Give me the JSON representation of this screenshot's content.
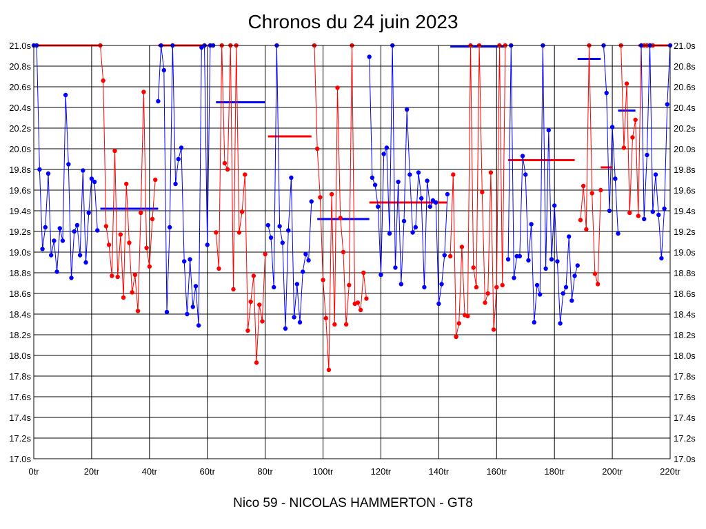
{
  "chart_data": {
    "type": "line",
    "title": "Chronos du 24 juin 2023",
    "footer": "Nico 59 - NICOLAS HAMMERTON - GT8",
    "xlabel": "",
    "ylabel": "",
    "xlim": [
      0,
      220
    ],
    "ylim": [
      17.0,
      21.0
    ],
    "x_ticks": [
      0,
      20,
      40,
      60,
      80,
      100,
      120,
      140,
      160,
      180,
      200,
      220
    ],
    "x_tick_labels": [
      "0tr",
      "20tr",
      "40tr",
      "60tr",
      "80tr",
      "100tr",
      "120tr",
      "140tr",
      "160tr",
      "180tr",
      "200tr",
      "220tr"
    ],
    "y_ticks": [
      17.0,
      17.2,
      17.4,
      17.6,
      17.8,
      18.0,
      18.2,
      18.4,
      18.6,
      18.8,
      19.0,
      19.2,
      19.4,
      19.6,
      19.8,
      20.0,
      20.2,
      20.4,
      20.6,
      20.8,
      21.0
    ],
    "y_tick_labels": [
      "17.0s",
      "17.2s",
      "17.4s",
      "17.6s",
      "17.8s",
      "18.0s",
      "18.2s",
      "18.4s",
      "18.6s",
      "18.8s",
      "19.0s",
      "19.2s",
      "19.4s",
      "19.6s",
      "19.8s",
      "20.0s",
      "20.2s",
      "20.4s",
      "20.6s",
      "20.8s",
      "21.0s"
    ],
    "grid": true,
    "colors": {
      "blue": "#0000ff",
      "red": "#ff0000"
    },
    "series": [
      {
        "name": "s1",
        "color": "blue",
        "x": [
          0,
          1,
          2,
          3,
          4,
          5,
          6,
          7,
          8,
          9,
          10,
          11,
          12,
          13,
          14,
          15,
          16,
          17,
          18,
          19,
          20,
          21,
          22
        ],
        "y": [
          21.0,
          21.0,
          19.8,
          19.03,
          19.24,
          19.76,
          18.97,
          19.11,
          18.81,
          19.23,
          19.11,
          20.52,
          19.85,
          18.75,
          19.2,
          19.26,
          18.97,
          19.79,
          18.9,
          19.38,
          19.71,
          19.68,
          19.21
        ]
      },
      {
        "name": "s2",
        "color": "red",
        "x": [
          23,
          24,
          25,
          26,
          27,
          28,
          29,
          30,
          31,
          32,
          33,
          34,
          35,
          36,
          37,
          38,
          39,
          40,
          41,
          42
        ],
        "y": [
          21.0,
          20.66,
          19.25,
          19.07,
          18.77,
          19.98,
          18.76,
          19.17,
          18.56,
          19.66,
          19.09,
          18.61,
          18.78,
          18.43,
          19.38,
          20.55,
          19.04,
          18.86,
          19.32,
          19.7
        ]
      },
      {
        "name": "s3",
        "color": "blue",
        "x": [
          43,
          44,
          45,
          46,
          47,
          48,
          49,
          50,
          51,
          52,
          53,
          54,
          55,
          56,
          57,
          58,
          59,
          60,
          61,
          62
        ],
        "y": [
          20.46,
          21.0,
          20.76,
          18.42,
          19.24,
          21.0,
          19.66,
          19.9,
          20.01,
          18.91,
          18.4,
          18.93,
          18.47,
          18.67,
          18.29,
          20.98,
          21.0,
          19.07,
          21.0,
          21.0
        ]
      },
      {
        "name": "s4",
        "color": "red",
        "x": [
          63,
          64,
          65,
          66,
          67,
          68,
          69,
          70,
          71,
          72,
          73,
          74,
          75,
          76,
          77,
          78,
          79,
          80
        ],
        "y": [
          19.19,
          18.84,
          21.0,
          19.86,
          19.8,
          21.0,
          18.64,
          21.0,
          19.19,
          19.39,
          19.75,
          18.24,
          18.52,
          18.77,
          17.93,
          18.49,
          18.33,
          18.98
        ]
      },
      {
        "name": "s5",
        "color": "blue",
        "x": [
          81,
          82,
          83,
          84,
          85,
          86,
          87,
          88,
          89,
          90,
          91,
          92,
          93,
          94,
          95,
          96
        ],
        "y": [
          19.26,
          19.14,
          18.66,
          21.0,
          19.25,
          19.09,
          18.26,
          19.21,
          19.72,
          18.37,
          18.69,
          18.32,
          18.81,
          18.98,
          18.92,
          19.49
        ]
      },
      {
        "name": "s6",
        "color": "red",
        "x": [
          97,
          98,
          99,
          100,
          101,
          102,
          103,
          104,
          105,
          106,
          107,
          108,
          109,
          110,
          111,
          112,
          113,
          114,
          115
        ],
        "y": [
          21.0,
          20.0,
          19.53,
          18.73,
          18.36,
          17.86,
          19.56,
          18.3,
          20.59,
          19.33,
          19.0,
          18.3,
          18.68,
          21.0,
          18.5,
          18.51,
          18.44,
          18.8,
          18.55
        ]
      },
      {
        "name": "s7",
        "color": "blue",
        "x": [
          116,
          117,
          118,
          119,
          120,
          121,
          122,
          123,
          124,
          125,
          126,
          127,
          128,
          129,
          130,
          131,
          132,
          133,
          134,
          135,
          136,
          137,
          138,
          139,
          140,
          141,
          142,
          143
        ],
        "y": [
          20.89,
          19.72,
          19.65,
          19.44,
          18.78,
          19.95,
          20.01,
          19.18,
          21.0,
          18.85,
          19.68,
          18.69,
          19.3,
          20.38,
          19.75,
          19.19,
          19.24,
          19.77,
          19.52,
          18.66,
          19.69,
          19.44,
          19.5,
          19.48,
          18.5,
          18.69,
          18.97,
          19.56
        ]
      },
      {
        "name": "s8",
        "color": "red",
        "x": [
          144,
          145,
          146,
          147,
          148,
          149,
          150,
          151,
          152,
          153,
          154,
          155,
          156,
          157,
          158,
          159,
          160,
          161,
          162,
          163
        ],
        "y": [
          18.96,
          19.75,
          18.18,
          18.31,
          19.05,
          18.39,
          18.38,
          21.0,
          18.85,
          18.66,
          21.0,
          19.58,
          18.51,
          18.6,
          19.77,
          18.25,
          18.66,
          21.0,
          18.68,
          21.0
        ]
      },
      {
        "name": "s9",
        "color": "blue",
        "x": [
          164,
          165,
          166,
          167,
          168,
          169,
          170,
          171,
          172,
          173,
          174,
          175,
          176,
          177,
          178,
          179,
          180,
          181,
          182,
          183,
          184,
          185,
          186,
          187,
          188
        ],
        "y": [
          18.93,
          21.0,
          18.75,
          18.96,
          18.96,
          19.93,
          19.75,
          18.92,
          19.27,
          18.32,
          18.68,
          18.59,
          21.0,
          18.84,
          20.18,
          18.93,
          19.45,
          18.91,
          18.31,
          18.6,
          18.66,
          19.15,
          18.53,
          18.77,
          18.87
        ]
      },
      {
        "name": "s10",
        "color": "red",
        "x": [
          189,
          190,
          191,
          192,
          193,
          194,
          195,
          196
        ],
        "y": [
          19.31,
          19.64,
          19.22,
          21.0,
          19.57,
          18.79,
          18.69,
          19.6
        ]
      },
      {
        "name": "s11",
        "color": "blue",
        "x": [
          197,
          198,
          199,
          200,
          201
        ],
        "y": [
          21.0,
          20.54,
          19.4,
          20.21,
          19.71
        ]
      },
      {
        "name": "s12",
        "color": "blue",
        "x": [
          201,
          202
        ],
        "y": [
          19.71,
          19.18
        ]
      },
      {
        "name": "s13",
        "color": "red",
        "x": [
          203,
          204,
          205,
          206,
          207,
          208,
          209,
          210,
          211,
          212,
          213,
          214
        ],
        "y": [
          21.0,
          20.01,
          20.63,
          19.38,
          20.11,
          20.28,
          19.35,
          21.0,
          21.0,
          21.0,
          21.0,
          21.0
        ]
      },
      {
        "name": "s14",
        "color": "blue",
        "x": [
          210,
          211,
          212,
          213,
          214,
          215,
          216,
          217,
          218,
          219,
          220
        ],
        "y": [
          21.0,
          19.32,
          19.94,
          21.0,
          19.39,
          19.75,
          19.36,
          18.94,
          19.42,
          20.43,
          21.0
        ]
      }
    ],
    "reference_lines": [
      {
        "color": "red",
        "x_start": 0.5,
        "x_end": 23,
        "y": 21.0
      },
      {
        "color": "blue",
        "x_start": 23,
        "x_end": 43,
        "y": 19.42
      },
      {
        "color": "red",
        "x_start": 43,
        "x_end": 60,
        "y": 21.0
      },
      {
        "color": "blue",
        "x_start": 63,
        "x_end": 80,
        "y": 20.45
      },
      {
        "color": "red",
        "x_start": 81,
        "x_end": 96,
        "y": 20.12
      },
      {
        "color": "blue",
        "x_start": 98,
        "x_end": 116,
        "y": 19.32
      },
      {
        "color": "red",
        "x_start": 116,
        "x_end": 143,
        "y": 19.48
      },
      {
        "color": "blue",
        "x_start": 144,
        "x_end": 163,
        "y": 20.99
      },
      {
        "color": "red",
        "x_start": 164,
        "x_end": 187,
        "y": 19.89
      },
      {
        "color": "blue",
        "x_start": 188,
        "x_end": 196,
        "y": 20.87
      },
      {
        "color": "red",
        "x_start": 196,
        "x_end": 200,
        "y": 19.82
      },
      {
        "color": "blue",
        "x_start": 202,
        "x_end": 208,
        "y": 20.37
      },
      {
        "color": "red",
        "x_start": 209,
        "x_end": 220,
        "y": 21.0
      }
    ]
  }
}
